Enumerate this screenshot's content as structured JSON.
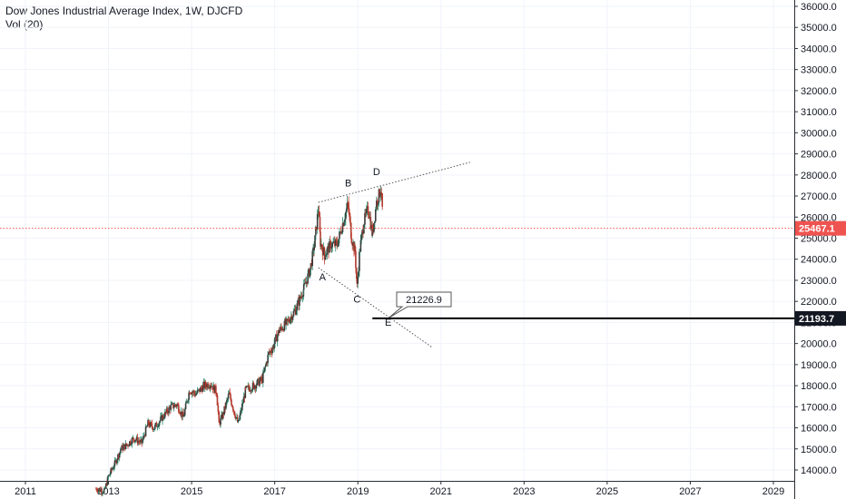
{
  "header": {
    "title": "Dow Jones Industrial Average Index, 1W, DJCFD",
    "volume_label": "Vol (20)"
  },
  "colors": {
    "up": "#26a69a",
    "down": "#ef5350",
    "candle_body": "#4a4a4a",
    "grid": "#f0f3fa",
    "current_price_line": "#ef5350",
    "horizontal_line": "#000000",
    "trendline": "#555555"
  },
  "chart_data": {
    "type": "line",
    "title": "Dow Jones Industrial Average Index, 1W, DJCFD",
    "xlabel": "",
    "ylabel": "",
    "x_tick_labels": [
      "2011",
      "2013",
      "2015",
      "2017",
      "2019",
      "2021",
      "2023",
      "2025",
      "2027",
      "2029"
    ],
    "y_tick_labels": [
      "36000.0",
      "35000.0",
      "34000.0",
      "33000.0",
      "32000.0",
      "31000.0",
      "30000.0",
      "29000.0",
      "28000.0",
      "27000.0",
      "26000.0",
      "25000.0",
      "24000.0",
      "23000.0",
      "22000.0",
      "21000.0",
      "20000.0",
      "19000.0",
      "18000.0",
      "17000.0",
      "16000.0",
      "15000.0",
      "14000.0"
    ],
    "ylim": [
      13600,
      36200
    ],
    "xlim": [
      2010.5,
      2030.0
    ],
    "grid": true,
    "series": [
      {
        "x": [
          2012.7,
          2012.9,
          2013.0,
          2013.15,
          2013.3,
          2013.45,
          2013.6,
          2013.8,
          2013.95,
          2014.1,
          2014.3,
          2014.5,
          2014.65,
          2014.8,
          2014.95,
          2015.1,
          2015.3,
          2015.45,
          2015.6,
          2015.66,
          2015.75,
          2015.9,
          2016.05,
          2016.12,
          2016.3,
          2016.5,
          2016.7,
          2016.85,
          2016.95,
          2017.1,
          2017.3,
          2017.5,
          2017.7,
          2017.85,
          2017.95,
          2018.05,
          2018.1,
          2018.2,
          2018.35,
          2018.5,
          2018.65,
          2018.76,
          2018.85,
          2018.93,
          2018.98,
          2019.05,
          2019.15,
          2019.25,
          2019.35,
          2019.45,
          2019.55,
          2019.6
        ],
        "values": [
          13100,
          13000,
          13700,
          14300,
          15000,
          15200,
          15500,
          15300,
          16200,
          16000,
          16500,
          17000,
          17100,
          16500,
          17800,
          17600,
          18000,
          18100,
          17700,
          16200,
          16600,
          17600,
          16600,
          16200,
          17800,
          18000,
          18300,
          19500,
          19800,
          20600,
          21000,
          21600,
          22600,
          23500,
          24600,
          26400,
          24800,
          24200,
          24700,
          24700,
          25800,
          26600,
          25000,
          24400,
          22700,
          24500,
          25800,
          26400,
          25200,
          26700,
          27300,
          26100
        ]
      }
    ],
    "current_price": 25467.1,
    "horizontal_level": 21193.7,
    "callout_value": 21226.9,
    "wave_labels": [
      "A",
      "B",
      "C",
      "D",
      "E"
    ]
  }
}
